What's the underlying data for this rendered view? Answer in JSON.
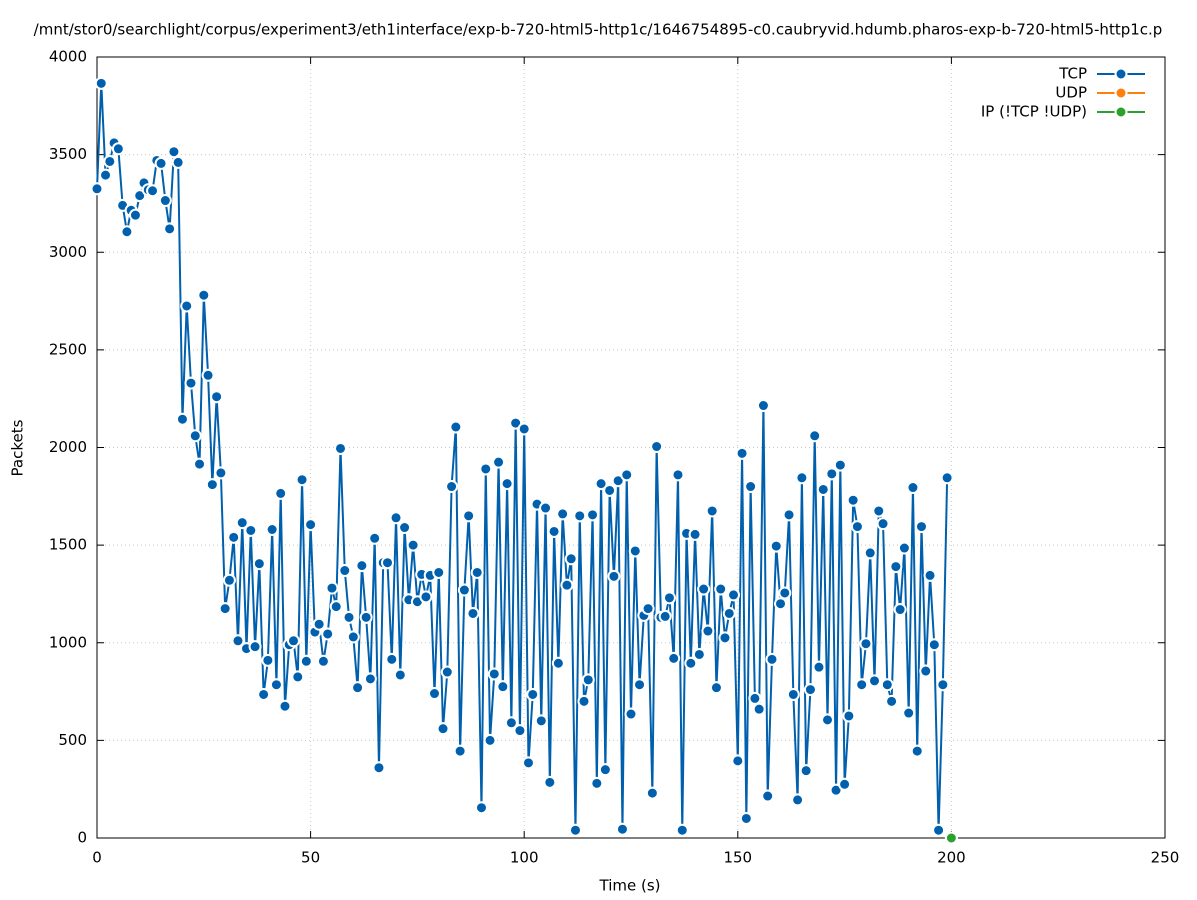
{
  "chart_data": {
    "type": "line",
    "title": "/mnt/stor0/searchlight/corpus/experiment3/eth1interface/exp-b-720-html5-http1c/1646754895-c0.caubryvid.hdumb.pharos-exp-b-720-html5-http1c.p",
    "x_label": "Time (s)",
    "y_label": "Packets",
    "xlim": [
      0,
      250
    ],
    "xticks": [
      0,
      50,
      100,
      150,
      200,
      250
    ],
    "ylim": [
      0,
      4000
    ],
    "yticks": [
      0,
      500,
      1000,
      1500,
      2000,
      2500,
      3000,
      3500,
      4000
    ],
    "grid": true,
    "legend": "top-right",
    "series": [
      {
        "name": "TCP",
        "color": "#0060ad",
        "x": [
          0,
          1,
          2,
          3,
          4,
          5,
          6,
          7,
          8,
          9,
          10,
          11,
          12,
          13,
          14,
          15,
          16,
          17,
          18,
          19,
          20,
          21,
          22,
          23,
          24,
          25,
          26,
          27,
          28,
          29,
          30,
          31,
          32,
          33,
          34,
          35,
          36,
          37,
          38,
          39,
          40,
          41,
          42,
          43,
          44,
          45,
          46,
          47,
          48,
          49,
          50,
          51,
          52,
          53,
          54,
          55,
          56,
          57,
          58,
          59,
          60,
          61,
          62,
          63,
          64,
          65,
          66,
          67,
          68,
          69,
          70,
          71,
          72,
          73,
          74,
          75,
          76,
          77,
          78,
          79,
          80,
          81,
          82,
          83,
          84,
          85,
          86,
          87,
          88,
          89,
          90,
          91,
          92,
          93,
          94,
          95,
          96,
          97,
          98,
          99,
          100,
          101,
          102,
          103,
          104,
          105,
          106,
          107,
          108,
          109,
          110,
          111,
          112,
          113,
          114,
          115,
          116,
          117,
          118,
          119,
          120,
          121,
          122,
          123,
          124,
          125,
          126,
          127,
          128,
          129,
          130,
          131,
          132,
          133,
          134,
          135,
          136,
          137,
          138,
          139,
          140,
          141,
          142,
          143,
          144,
          145,
          146,
          147,
          148,
          149,
          150,
          151,
          152,
          153,
          154,
          155,
          156,
          157,
          158,
          159,
          160,
          161,
          162,
          163,
          164,
          165,
          166,
          167,
          168,
          169,
          170,
          171,
          172,
          173,
          174,
          175,
          176,
          177,
          178,
          179,
          180,
          181,
          182,
          183,
          184,
          185,
          186,
          187,
          188,
          189,
          190,
          191,
          192,
          193,
          194,
          195,
          196,
          197,
          198,
          199
        ],
        "values": [
          3325,
          3865,
          3395,
          3465,
          3560,
          3530,
          3240,
          3105,
          3215,
          3190,
          3290,
          3355,
          3320,
          3315,
          3470,
          3455,
          3265,
          3120,
          3515,
          3460,
          2145,
          2725,
          2330,
          2060,
          1915,
          2780,
          2370,
          1810,
          2260,
          1870,
          1175,
          1320,
          1540,
          1010,
          1615,
          970,
          1575,
          980,
          1405,
          735,
          910,
          1580,
          785,
          1765,
          675,
          990,
          1010,
          825,
          1835,
          905,
          1605,
          1055,
          1095,
          905,
          1045,
          1280,
          1185,
          1995,
          1370,
          1130,
          1030,
          770,
          1395,
          1130,
          815,
          1535,
          360,
          1410,
          1410,
          915,
          1640,
          835,
          1590,
          1220,
          1500,
          1210,
          1350,
          1235,
          1345,
          740,
          1360,
          560,
          850,
          1800,
          2105,
          445,
          1270,
          1650,
          1150,
          1360,
          155,
          1890,
          500,
          840,
          1925,
          775,
          1815,
          590,
          2125,
          550,
          2095,
          385,
          735,
          1710,
          600,
          1690,
          285,
          1570,
          895,
          1660,
          1295,
          1430,
          40,
          1650,
          700,
          810,
          1655,
          280,
          1815,
          350,
          1780,
          1340,
          1830,
          45,
          1860,
          635,
          1470,
          785,
          1140,
          1175,
          230,
          2005,
          1130,
          1135,
          1230,
          920,
          1860,
          40,
          1560,
          895,
          1555,
          940,
          1275,
          1060,
          1675,
          770,
          1275,
          1025,
          1150,
          1245,
          395,
          1970,
          100,
          1800,
          715,
          660,
          2215,
          215,
          915,
          1495,
          1200,
          1255,
          1655,
          735,
          195,
          1845,
          345,
          760,
          2060,
          875,
          1785,
          605,
          1865,
          245,
          1910,
          275,
          625,
          1730,
          1595,
          785,
          995,
          1460,
          805,
          1675,
          1610,
          785,
          700,
          1390,
          1170,
          1485,
          640,
          1795,
          445,
          1595,
          855,
          1345,
          990,
          40,
          785,
          1845
        ]
      },
      {
        "name": "UDP",
        "color": "#ff7f0e",
        "x": [
          200
        ],
        "values": [
          0
        ]
      },
      {
        "name": "IP (!TCP  !UDP)",
        "color": "#2ca02c",
        "x": [
          200
        ],
        "values": [
          0
        ]
      }
    ]
  }
}
